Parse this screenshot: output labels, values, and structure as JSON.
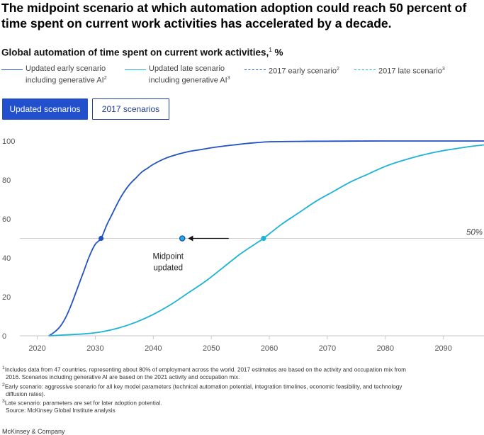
{
  "title": "The midpoint scenario at which automation adoption could reach 50 percent of time spent on current work activities has accelerated by a decade.",
  "subtitle": {
    "text": "Global automation of time spent on current work activities,",
    "sup": "1",
    "unit": " %"
  },
  "legend": [
    {
      "label": "Updated early scenario including generative AI",
      "sup": "2",
      "color": "#2251c4",
      "style": "solid"
    },
    {
      "label": "Updated late scenario including generative AI",
      "sup": "3",
      "color": "#1bb3d6",
      "style": "solid"
    },
    {
      "label": "2017 early scenario",
      "sup": "2",
      "color": "#2251c4",
      "style": "dashed"
    },
    {
      "label": "2017 late scenario",
      "sup": "3",
      "color": "#1bb3d6",
      "style": "dashed"
    }
  ],
  "toggles": {
    "updated": "Updated scenarios",
    "old": "2017 scenarios"
  },
  "chart_data": {
    "type": "line",
    "xlim": [
      2017,
      2097
    ],
    "ylim": [
      0,
      100
    ],
    "x_ticks": [
      2020,
      2030,
      2040,
      2050,
      2060,
      2070,
      2080,
      2090
    ],
    "y_ticks": [
      0,
      20,
      40,
      60,
      80,
      100
    ],
    "grid": "horizontal-baseline",
    "reference_line": {
      "y": 50,
      "label": "50%"
    },
    "series": [
      {
        "name": "Updated early scenario including generative AI",
        "color": "#2251c4",
        "x": [
          2022,
          2023,
          2024,
          2025,
          2026,
          2027,
          2028,
          2029,
          2030,
          2031,
          2032,
          2033,
          2034,
          2035,
          2036,
          2037,
          2038,
          2039,
          2040,
          2042,
          2044,
          2046,
          2048,
          2050,
          2052,
          2054,
          2056,
          2058,
          2060,
          2065,
          2070,
          2080,
          2090,
          2097
        ],
        "y": [
          0,
          2,
          5,
          10,
          17,
          25,
          33,
          41,
          47,
          50,
          57,
          63,
          69,
          74,
          78,
          81,
          84,
          86,
          88,
          91,
          93,
          94.5,
          95.5,
          96.5,
          97.3,
          98,
          98.7,
          99.2,
          99.6,
          99.8,
          99.9,
          100,
          100,
          100
        ]
      },
      {
        "name": "Updated late scenario including generative AI",
        "color": "#1bb3d6",
        "x": [
          2022,
          2025,
          2028,
          2031,
          2034,
          2037,
          2040,
          2043,
          2046,
          2049,
          2052,
          2055,
          2058,
          2059,
          2062,
          2065,
          2068,
          2071,
          2074,
          2077,
          2080,
          2083,
          2086,
          2089,
          2092,
          2095,
          2097
        ],
        "y": [
          0,
          0.5,
          1,
          2,
          4,
          7,
          11,
          16,
          22,
          28,
          35,
          42,
          48,
          50,
          57,
          63,
          69,
          74,
          79,
          83,
          87,
          90,
          92.5,
          94.5,
          96,
          97.3,
          98
        ]
      }
    ],
    "points": [
      {
        "x": 2031,
        "y": 50,
        "color": "#2251c4"
      },
      {
        "x": 2059,
        "y": 50,
        "color": "#1bb3d6"
      },
      {
        "x": 2045,
        "y": 50,
        "color": "#1bb3d6"
      }
    ],
    "annotation": {
      "line1": "Midpoint",
      "line2": "updated",
      "at_x": 2045,
      "at_y": 50,
      "arrow_from_x": 2053,
      "arrow_to_x": 2046
    }
  },
  "footnotes": [
    {
      "sup": "1",
      "text": "Includes data from 47 countries, representing about 80% of employment across the world. 2017 estimates are based on the activity and occupation mix from",
      "cont": "2016. Scenarios including generative AI are based on the 2021 activity and occupation mix."
    },
    {
      "sup": "2",
      "text": "Early scenario: aggressive scenario for all key model parameters (technical automation potential, integration timelines, economic feasibility, and technology",
      "cont": "diffusion rates)."
    },
    {
      "sup": "3",
      "text": "Late scenario: parameters are set for later adoption potential.",
      "cont": ""
    }
  ],
  "source": "Source: McKinsey Global Institute analysis",
  "brand": "McKinsey & Company"
}
